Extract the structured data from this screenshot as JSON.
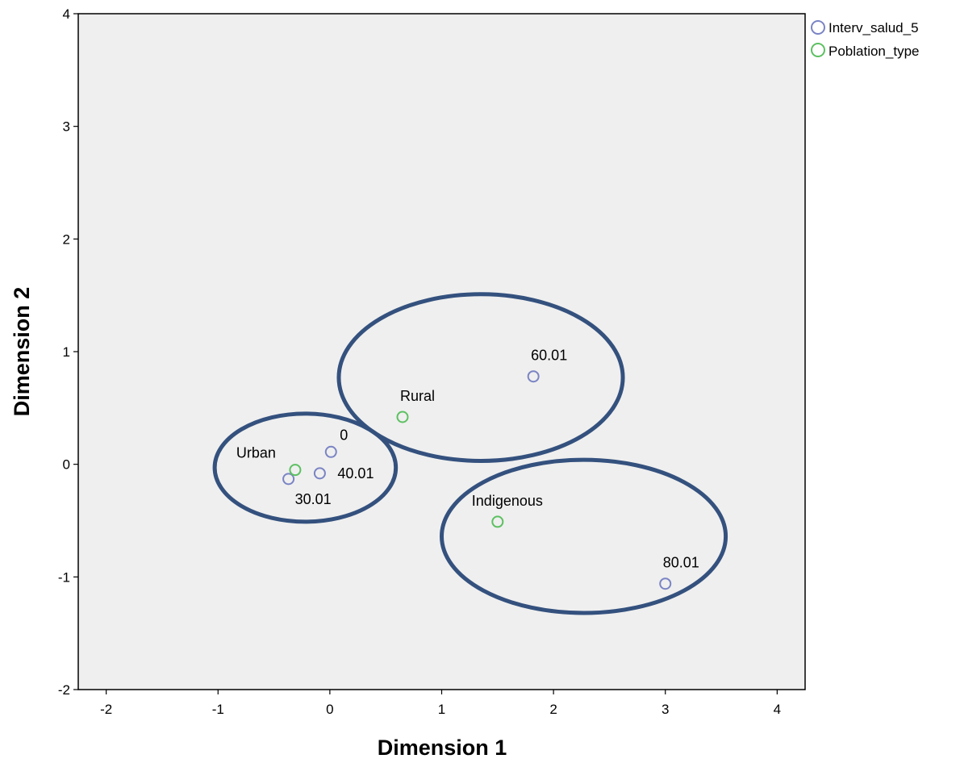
{
  "chart_data": {
    "type": "scatter",
    "xlabel": "Dimension 1",
    "ylabel": "Dimension 2",
    "xlim": [
      -2.25,
      4.25
    ],
    "ylim": [
      -2,
      4
    ],
    "xticks": [
      -2,
      -1,
      0,
      1,
      2,
      3,
      4
    ],
    "yticks": [
      -2,
      -1,
      0,
      1,
      2,
      3,
      4
    ],
    "grid": false,
    "legend_position": "outside-top-right",
    "plot_background": "#efefef",
    "series": [
      {
        "name": "Interv_salud_5",
        "color": "#7a84c4",
        "points": [
          {
            "label": "0",
            "x": 0.01,
            "y": 0.11
          },
          {
            "label": "40.01",
            "x": -0.09,
            "y": -0.08
          },
          {
            "label": "30.01",
            "x": -0.37,
            "y": -0.13
          },
          {
            "label": "60.01",
            "x": 1.82,
            "y": 0.78
          },
          {
            "label": "80.01",
            "x": 3.0,
            "y": -1.06
          }
        ]
      },
      {
        "name": "Poblation_type",
        "color": "#5cc061",
        "points": [
          {
            "label": "Urban",
            "x": -0.31,
            "y": -0.05
          },
          {
            "label": "Rural",
            "x": 0.65,
            "y": 0.42
          },
          {
            "label": "Indigenous",
            "x": 1.5,
            "y": -0.51
          }
        ]
      }
    ],
    "annotations": {
      "ellipse_color": "#34517e",
      "groups": [
        {
          "cx": -0.22,
          "cy": -0.03,
          "rx": 0.81,
          "ry": 0.48
        },
        {
          "cx": 1.35,
          "cy": 0.77,
          "rx": 1.27,
          "ry": 0.74
        },
        {
          "cx": 2.27,
          "cy": -0.64,
          "rx": 1.27,
          "ry": 0.68
        }
      ]
    }
  }
}
